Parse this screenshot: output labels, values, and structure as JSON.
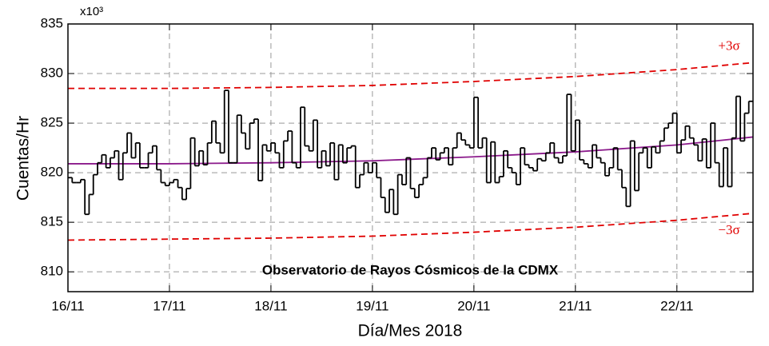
{
  "chart_data": {
    "type": "step",
    "y_multiplier": "x10³",
    "annotation": "Observatorio de Rayos Cósmicos de la CDMX",
    "xlabel": "Día/Mes 2018",
    "ylabel": "Cuentas/Hr",
    "xlim": [
      0,
      162
    ],
    "ylim": [
      808,
      835
    ],
    "xticks": [
      {
        "value": 0,
        "label": "16/11"
      },
      {
        "value": 24,
        "label": "17/11"
      },
      {
        "value": 48,
        "label": "18/11"
      },
      {
        "value": 72,
        "label": "19/11"
      },
      {
        "value": 96,
        "label": "20/11"
      },
      {
        "value": 120,
        "label": "21/11"
      },
      {
        "value": 144,
        "label": "22/11"
      }
    ],
    "yticks": [
      810,
      815,
      820,
      825,
      830,
      835
    ],
    "grid": true,
    "color": "#000000",
    "values": [
      819.5,
      819,
      819,
      819.3,
      815.8,
      817.8,
      819.8,
      821,
      821.8,
      820.5,
      821.5,
      822.2,
      819.3,
      822,
      824,
      821.5,
      823,
      820.5,
      820.5,
      822,
      822.7,
      820.3,
      819,
      818.7,
      819,
      819.3,
      818.5,
      817.3,
      818.4,
      823.5,
      820.7,
      822.2,
      820.8,
      823,
      825.2,
      823,
      822,
      828.3,
      821,
      821,
      825.8,
      824,
      822.4,
      825,
      825.4,
      819.2,
      822.8,
      822.2,
      823,
      822,
      820.5,
      823.2,
      824.2,
      821,
      820.5,
      826.6,
      822.7,
      822.2,
      825.3,
      820.5,
      822.2,
      820.7,
      823,
      819.3,
      822.8,
      821,
      822.5,
      822.7,
      818.5,
      819.8,
      821,
      820,
      821,
      819.5,
      817.5,
      816,
      818.3,
      815.8,
      819.8,
      818.8,
      821.5,
      818.4,
      817.5,
      818.8,
      819.5,
      821.5,
      822.5,
      821.3,
      822,
      822.5,
      820.8,
      822.5,
      824,
      823.3,
      822.8,
      822.5,
      827.6,
      822.5,
      823.5,
      819,
      823.1,
      819,
      819.6,
      822.2,
      820.5,
      820,
      818.8,
      822.5,
      820.8,
      820.5,
      820.2,
      821.4,
      821.2,
      822,
      823,
      821.5,
      821,
      821.7,
      827.9,
      822.2,
      825.3,
      821.3,
      820.9,
      820.5,
      822.8,
      821.5,
      821,
      819.7,
      820.5,
      822.5,
      820.3,
      818.5,
      816.6,
      823.2,
      818.2,
      822,
      822.5,
      820.5,
      822.6,
      822,
      823.2,
      824.5,
      825,
      826,
      822,
      823.3,
      824.7,
      823.5,
      822.8,
      821.2,
      823.4,
      820.5,
      825,
      821,
      818.6,
      822.5,
      818.6,
      823.5,
      827.7,
      823.2,
      826,
      827.2
    ],
    "curves": [
      {
        "color": "#8b1a8b",
        "dashed": false,
        "x": [
          0,
          24,
          48,
          72,
          96,
          120,
          144,
          162
        ],
        "values": [
          820.9,
          820.9,
          821.0,
          821.2,
          821.6,
          822.1,
          822.8,
          823.6
        ]
      },
      {
        "color": "#e00000",
        "dashed": true,
        "label": "+3σ",
        "x": [
          0,
          24,
          48,
          72,
          96,
          120,
          144,
          162
        ],
        "values": [
          828.5,
          828.5,
          828.6,
          828.8,
          829.2,
          829.7,
          830.4,
          831.1
        ]
      },
      {
        "color": "#e00000",
        "dashed": true,
        "label": "−3σ",
        "x": [
          0,
          24,
          48,
          72,
          96,
          120,
          144,
          162
        ],
        "values": [
          813.2,
          813.3,
          813.4,
          813.6,
          814.0,
          814.5,
          815.2,
          815.9
        ]
      }
    ]
  }
}
